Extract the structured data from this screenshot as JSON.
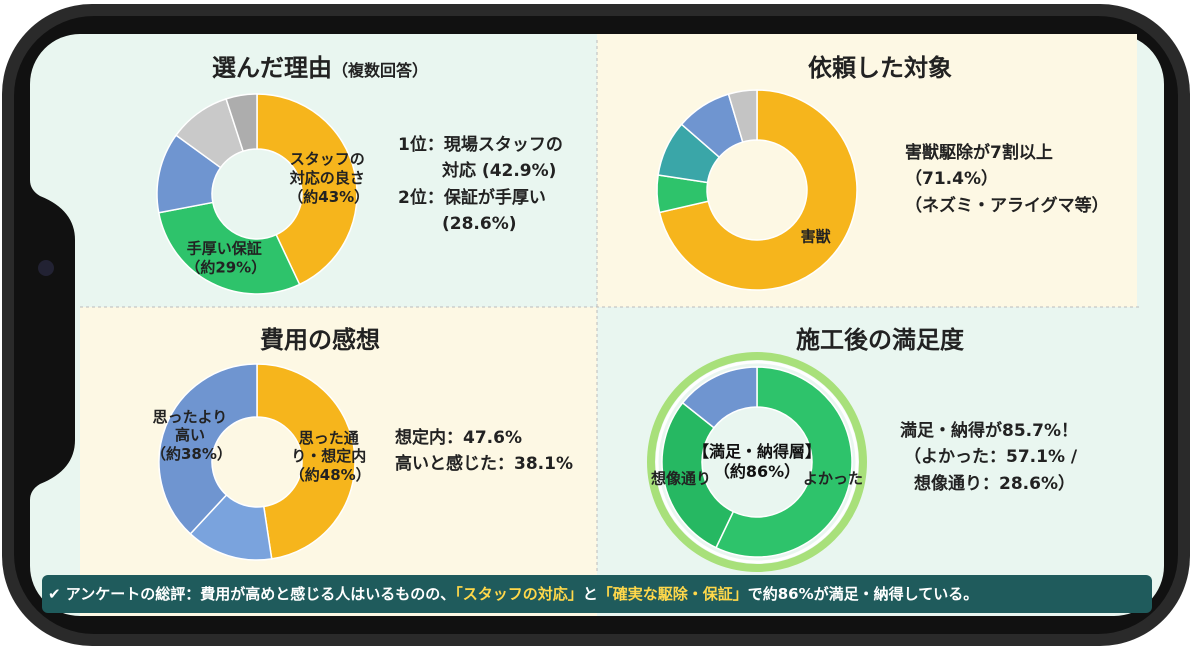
{
  "chart_data": [
    {
      "type": "pie",
      "title": "選んだ理由",
      "subtitle": "（複数回答）",
      "categories": [
        "スタッフの対応の良さ",
        "手厚い保証",
        null,
        null,
        null
      ],
      "values": [
        43,
        29,
        13,
        10,
        5
      ],
      "value_labels": [
        "（約43%）",
        "（約29%）",
        null,
        null,
        null
      ],
      "colors": [
        "#f6b51c",
        "#2ec36b",
        "#6f95d0",
        "#c9c9c9",
        "#adadad"
      ],
      "annotations": [
        "1位：現場スタッフの",
        "対応 (42.9%)",
        "2位：保証が手厚い",
        "(28.6%)"
      ]
    },
    {
      "type": "pie",
      "title": "依頼した対象",
      "categories": [
        "害獣",
        null,
        null,
        null,
        null
      ],
      "values": [
        71.4,
        6,
        9,
        9,
        4.6
      ],
      "value_labels": [
        null,
        null,
        null,
        null,
        null
      ],
      "colors": [
        "#f6b51c",
        "#2ec36b",
        "#3aa6a8",
        "#6f95d0",
        "#c4c4c4"
      ],
      "annotations": [
        "害獣駆除が7割以上",
        "（71.4%）",
        "（ネズミ・アライグマ等）"
      ]
    },
    {
      "type": "pie",
      "title": "費用の感想",
      "categories": [
        "思った通り・想定内",
        null,
        "思ったより高い"
      ],
      "values": [
        47.6,
        14.3,
        38.1
      ],
      "value_labels": [
        "（約48%）",
        null,
        "（約38%）"
      ],
      "colors": [
        "#f6b51c",
        "#7aa3dd",
        "#6f95d0"
      ],
      "annotations": [
        "想定内：47.6%",
        "高いと感じた：38.1%"
      ]
    },
    {
      "type": "pie",
      "title": "施工後の満足度",
      "categories": [
        "よかった",
        "想像通り",
        null
      ],
      "values": [
        57.1,
        28.6,
        14.3
      ],
      "value_labels": [
        null,
        null,
        null
      ],
      "colors": [
        "#2ec36b",
        "#26b862",
        "#6f95d0"
      ],
      "center_label": [
        "【満足・納得層】",
        "（約86%）"
      ],
      "annotations": [
        "満足・納得が85.7%！",
        "（よかった：57.1% /",
        "想像通り：28.6%）"
      ]
    }
  ],
  "summary": [
    "アンケートの総評：費用が高めと感じる人はいるものの、",
    "「スタッフの対応」",
    "と",
    "「確実な駆除・保証」",
    "で約86%が満足・納得している。"
  ]
}
